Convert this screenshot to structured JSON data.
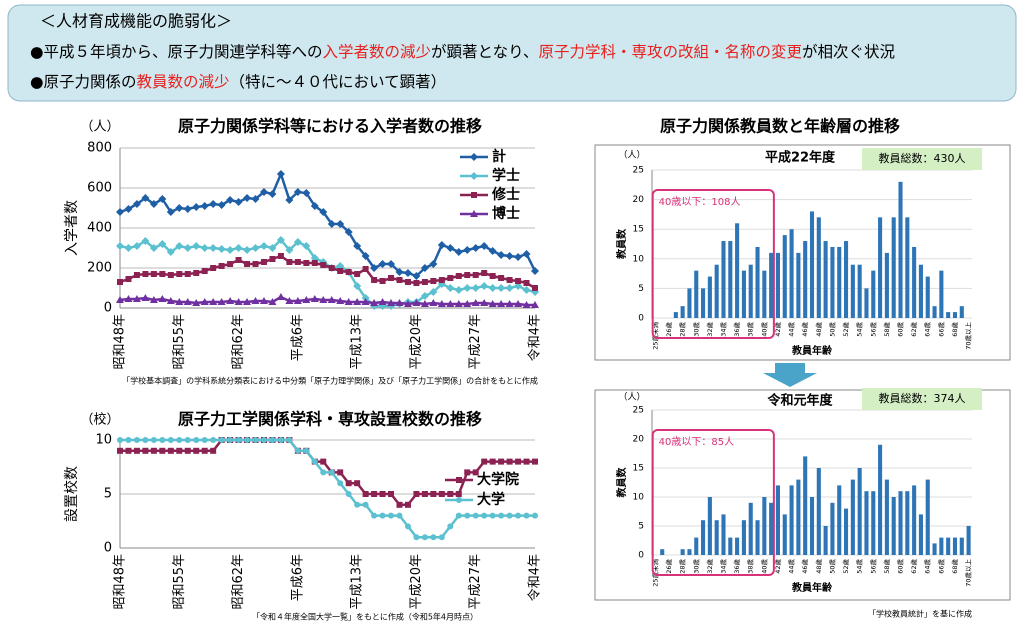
{
  "header": {
    "title": "＜人材育成機能の脆弱化＞",
    "bullets": [
      [
        {
          "text": "●平成５年頃から、原子力関連学科等への",
          "color": "#000000"
        },
        {
          "text": "入学者数の減少",
          "color": "#e8201e"
        },
        {
          "text": "が顕著となり、",
          "color": "#000000"
        },
        {
          "text": "原子力学科・専攻の改組・名称の変更",
          "color": "#e8201e"
        },
        {
          "text": "が相次ぐ状況",
          "color": "#000000"
        }
      ],
      [
        {
          "text": "●原子力関係の",
          "color": "#000000"
        },
        {
          "text": "教員数の減少",
          "color": "#e8201e"
        },
        {
          "text": "（特に～４０代において顕著）",
          "color": "#000000"
        }
      ]
    ]
  },
  "right_title": "原子力関係教員数と年齢層の推移",
  "chart_data": [
    {
      "type": "line",
      "title": "原子力関係学科等における入学者数の推移",
      "unit": "（人）",
      "ylabel": "入学者数",
      "legend": "upper right",
      "note": "「学校基本調査」の学科系統分類表における中分類「原子力理学関係」及び「原子力工学関係」の合計をもとに作成",
      "categories": [
        "昭和48年",
        null,
        null,
        null,
        null,
        null,
        null,
        "昭和55年",
        null,
        null,
        null,
        null,
        null,
        null,
        "昭和62年",
        null,
        null,
        null,
        null,
        null,
        null,
        "平成6年",
        null,
        null,
        null,
        null,
        null,
        null,
        "平成13年",
        null,
        null,
        null,
        null,
        null,
        null,
        "平成20年",
        null,
        null,
        null,
        null,
        null,
        null,
        "平成27年",
        null,
        null,
        null,
        null,
        null,
        null,
        "令和4年"
      ],
      "ylim": [
        0,
        800
      ],
      "yticks": [
        0,
        200,
        400,
        600,
        800
      ],
      "series": [
        {
          "name": "計",
          "color": "#1f5fa6",
          "marker": "diamond",
          "values": [
            480,
            495,
            520,
            550,
            520,
            545,
            480,
            500,
            495,
            505,
            510,
            520,
            515,
            540,
            530,
            550,
            545,
            580,
            570,
            670,
            540,
            580,
            575,
            510,
            480,
            420,
            420,
            380,
            310,
            260,
            200,
            220,
            220,
            180,
            175,
            160,
            200,
            220,
            315,
            300,
            280,
            290,
            300,
            310,
            285,
            265,
            260,
            255,
            270,
            185
          ]
        },
        {
          "name": "学士",
          "color": "#5bc0cf",
          "marker": "diamond",
          "values": [
            310,
            300,
            310,
            335,
            300,
            320,
            280,
            310,
            300,
            310,
            300,
            300,
            295,
            290,
            300,
            290,
            300,
            310,
            300,
            340,
            290,
            330,
            310,
            250,
            230,
            200,
            210,
            180,
            110,
            50,
            10,
            10,
            10,
            20,
            30,
            30,
            60,
            80,
            120,
            100,
            90,
            100,
            100,
            110,
            100,
            100,
            100,
            110,
            90,
            80
          ]
        },
        {
          "name": "修士",
          "color": "#8b2252",
          "marker": "square",
          "values": [
            130,
            145,
            165,
            170,
            170,
            170,
            165,
            170,
            170,
            175,
            185,
            200,
            210,
            220,
            240,
            220,
            220,
            230,
            245,
            260,
            230,
            230,
            225,
            225,
            215,
            200,
            185,
            180,
            170,
            195,
            140,
            135,
            150,
            140,
            130,
            125,
            130,
            135,
            140,
            150,
            160,
            165,
            165,
            175,
            160,
            150,
            140,
            135,
            125,
            100
          ]
        },
        {
          "name": "博士",
          "color": "#7030a0",
          "marker": "triangle",
          "values": [
            40,
            45,
            45,
            50,
            40,
            45,
            35,
            30,
            30,
            25,
            30,
            30,
            30,
            35,
            30,
            30,
            35,
            35,
            30,
            55,
            35,
            35,
            40,
            45,
            40,
            40,
            35,
            30,
            30,
            30,
            25,
            30,
            25,
            25,
            20,
            25,
            20,
            25,
            20,
            20,
            20,
            20,
            25,
            25,
            20,
            20,
            20,
            20,
            15,
            15
          ]
        }
      ]
    },
    {
      "type": "line",
      "title": "原子力工学関係学科・専攻設置校数の推移",
      "unit": "（校）",
      "ylabel": "設置校数",
      "legend": "right",
      "note": "「令和４年度全国大学一覧」をもとに作成（令和5年4月時点）",
      "categories": [
        "昭和48年",
        null,
        null,
        null,
        null,
        null,
        null,
        "昭和55年",
        null,
        null,
        null,
        null,
        null,
        null,
        "昭和62年",
        null,
        null,
        null,
        null,
        null,
        null,
        "平成6年",
        null,
        null,
        null,
        null,
        null,
        null,
        "平成13年",
        null,
        null,
        null,
        null,
        null,
        null,
        "平成20年",
        null,
        null,
        null,
        null,
        null,
        null,
        "平成27年",
        null,
        null,
        null,
        null,
        null,
        null,
        "令和4年"
      ],
      "ylim": [
        0,
        10
      ],
      "yticks": [
        0,
        5,
        10
      ],
      "series": [
        {
          "name": "大学院",
          "color": "#8b2252",
          "marker": "square",
          "values": [
            9,
            9,
            9,
            9,
            9,
            9,
            9,
            9,
            9,
            9,
            9,
            9,
            10,
            10,
            10,
            10,
            10,
            10,
            10,
            10,
            10,
            9,
            9,
            8,
            8,
            7,
            7,
            6,
            6,
            5,
            5,
            5,
            5,
            4,
            4,
            5,
            5,
            5,
            5,
            5,
            5,
            7,
            7,
            8,
            8,
            8,
            8,
            8,
            8,
            8
          ]
        },
        {
          "name": "大学",
          "color": "#5bc0cf",
          "marker": "circle",
          "values": [
            10,
            10,
            10,
            10,
            10,
            10,
            10,
            10,
            10,
            10,
            10,
            10,
            10,
            10,
            10,
            10,
            10,
            10,
            10,
            10,
            10,
            9,
            9,
            8,
            7,
            7,
            6,
            5,
            4,
            4,
            3,
            3,
            3,
            3,
            2,
            1,
            1,
            1,
            1,
            2,
            3,
            3,
            3,
            3,
            3,
            3,
            3,
            3,
            3,
            3
          ]
        }
      ]
    },
    {
      "type": "bar",
      "title": "平成22年度",
      "unit": "（人）",
      "ylabel": "教員数",
      "xlabel": "教員年齢",
      "total": "教員総数：430人",
      "annotation": "40歳以下：108人",
      "color": "#2e75b6",
      "categories": [
        "25歳未満",
        null,
        "26歳",
        null,
        "28歳",
        null,
        "30歳",
        null,
        "32歳",
        null,
        "34歳",
        null,
        "36歳",
        null,
        "38歳",
        null,
        "40歳",
        null,
        "42歳",
        null,
        "44歳",
        null,
        "46歳",
        null,
        "48歳",
        null,
        "50歳",
        null,
        "52歳",
        null,
        "54歳",
        null,
        "56歳",
        null,
        "58歳",
        null,
        "60歳",
        null,
        "62歳",
        null,
        "64歳",
        null,
        "66歳",
        null,
        "68歳",
        null,
        "70歳以上"
      ],
      "values": [
        0,
        0,
        0,
        1,
        2,
        5,
        8,
        5,
        7,
        9,
        13,
        13,
        16,
        8,
        9,
        12,
        8,
        11,
        11,
        14,
        15,
        11,
        13,
        18,
        17,
        13,
        12,
        12,
        13,
        9,
        9,
        5,
        8,
        17,
        11,
        17,
        23,
        17,
        12,
        9,
        7,
        2,
        8,
        1,
        1,
        2,
        0
      ],
      "ylim": [
        0,
        25
      ],
      "yticks": [
        0,
        5,
        10,
        15,
        20,
        25
      ]
    },
    {
      "type": "bar",
      "title": "令和元年度",
      "unit": "（人）",
      "ylabel": "教員数",
      "xlabel": "教員年齢",
      "total": "教員総数：374人",
      "annotation": "40歳以下：85人",
      "color": "#2e75b6",
      "note": "「学校教員統計」を基に作成",
      "categories": [
        "25歳未満",
        null,
        "26歳",
        null,
        "28歳",
        null,
        "30歳",
        null,
        "32歳",
        null,
        "34歳",
        null,
        "36歳",
        null,
        "38歳",
        null,
        "40歳",
        null,
        "42歳",
        null,
        "44歳",
        null,
        "46歳",
        null,
        "48歳",
        null,
        "50歳",
        null,
        "52歳",
        null,
        "54歳",
        null,
        "56歳",
        null,
        "58歳",
        null,
        "60歳",
        null,
        "62歳",
        null,
        "64歳",
        null,
        "66歳",
        null,
        "68歳",
        null,
        "70歳以上"
      ],
      "values": [
        0,
        1,
        0,
        0,
        1,
        1,
        3,
        6,
        10,
        6,
        7,
        3,
        3,
        6,
        9,
        6,
        10,
        9,
        12,
        7,
        12,
        13,
        17,
        10,
        15,
        5,
        9,
        12,
        8,
        13,
        15,
        11,
        11,
        19,
        13,
        10,
        11,
        11,
        12,
        7,
        13,
        2,
        3,
        3,
        3,
        3,
        5
      ],
      "ylim": [
        0,
        25
      ],
      "yticks": [
        0,
        5,
        10,
        15,
        20,
        25
      ]
    }
  ]
}
